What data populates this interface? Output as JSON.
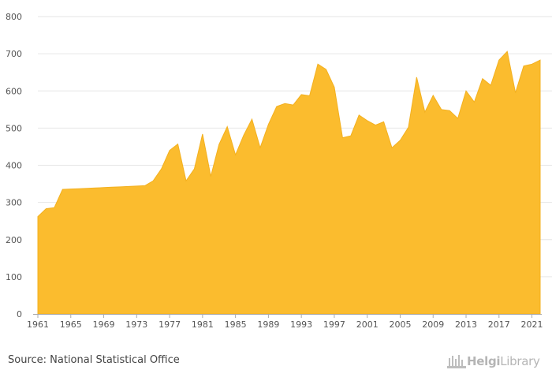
{
  "chart_data": {
    "type": "area",
    "title": "",
    "xlabel": "",
    "ylabel": "",
    "ylim": [
      0,
      800
    ],
    "yticks": [
      0,
      100,
      200,
      300,
      400,
      500,
      600,
      700,
      800
    ],
    "xlim": [
      1961,
      2022
    ],
    "xticks": [
      1961,
      1965,
      1969,
      1973,
      1977,
      1981,
      1985,
      1989,
      1993,
      1997,
      2001,
      2005,
      2009,
      2013,
      2017,
      2021
    ],
    "grid": true,
    "legend": "none",
    "color": "#FBBC2E",
    "x": [
      1961,
      1962,
      1963,
      1964,
      1965,
      1966,
      1967,
      1968,
      1969,
      1970,
      1971,
      1972,
      1973,
      1974,
      1975,
      1976,
      1977,
      1978,
      1979,
      1980,
      1981,
      1982,
      1983,
      1984,
      1985,
      1986,
      1987,
      1988,
      1989,
      1990,
      1991,
      1992,
      1993,
      1994,
      1995,
      1996,
      1997,
      1998,
      1999,
      2000,
      2001,
      2002,
      2003,
      2004,
      2005,
      2006,
      2007,
      2008,
      2009,
      2010,
      2011,
      2012,
      2013,
      2014,
      2015,
      2016,
      2017,
      2018,
      2019,
      2020,
      2021,
      2022
    ],
    "values": [
      262,
      283,
      286,
      335,
      336,
      337,
      338,
      339,
      340,
      341,
      342,
      343,
      344,
      345,
      358,
      390,
      440,
      457,
      358,
      390,
      484,
      370,
      456,
      504,
      428,
      481,
      524,
      447,
      510,
      558,
      566,
      562,
      590,
      587,
      672,
      658,
      610,
      474,
      479,
      535,
      520,
      508,
      517,
      447,
      467,
      502,
      637,
      543,
      588,
      550,
      547,
      526,
      600,
      570,
      633,
      615,
      683,
      706,
      595,
      667,
      672,
      683
    ]
  },
  "source": {
    "text": "Source: National Statistical Office"
  },
  "logo": {
    "text_bold": "Helgi",
    "text_regular": "Library",
    "icon": "helgi-library-building-icon"
  }
}
